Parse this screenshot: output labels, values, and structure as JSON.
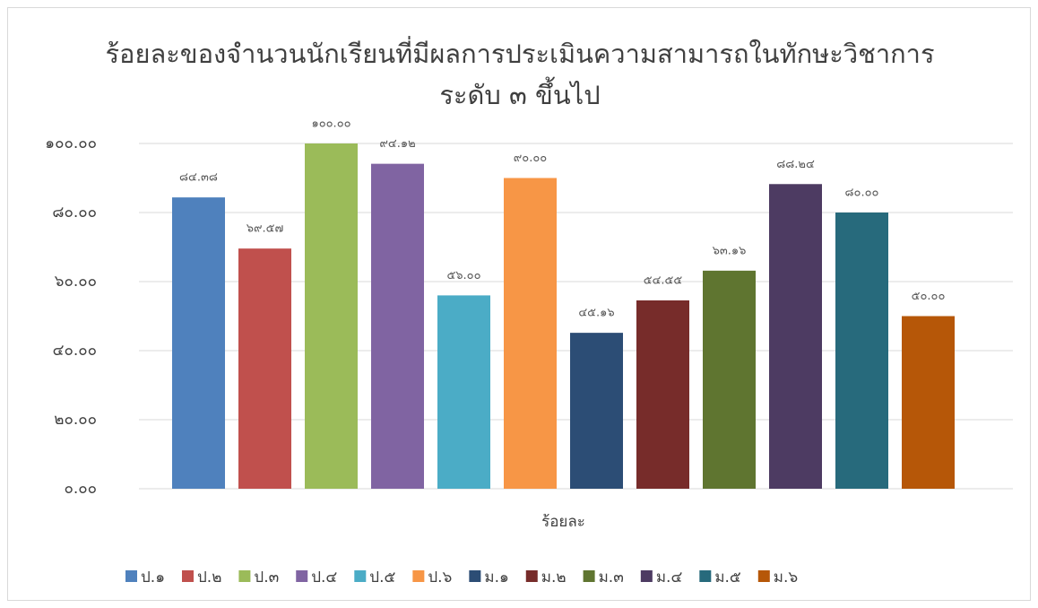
{
  "chart_data": {
    "type": "bar",
    "title": [
      "ร้อยละของจำนวนนักเรียนที่มีผลการประเมินความสามารถในทักษะวิชาการ",
      "ระดับ ๓ ขึ้นไป"
    ],
    "categories": [
      "ร้อยละ"
    ],
    "series": [
      {
        "name": "ป.๑",
        "color": "#4f81bd",
        "values": [
          84.38
        ],
        "value_labels": [
          "๘๔.๓๘"
        ]
      },
      {
        "name": "ป.๒",
        "color": "#c0504d",
        "values": [
          69.57
        ],
        "value_labels": [
          "๖๙.๕๗"
        ]
      },
      {
        "name": "ป.๓",
        "color": "#9bbb59",
        "values": [
          100
        ],
        "value_labels": [
          "๑๐๐.๐๐"
        ]
      },
      {
        "name": "ป.๔",
        "color": "#8064a2",
        "values": [
          94.12
        ],
        "value_labels": [
          "๙๔.๑๒"
        ]
      },
      {
        "name": "ป.๕",
        "color": "#4bacc6",
        "values": [
          56
        ],
        "value_labels": [
          "๕๖.๐๐"
        ]
      },
      {
        "name": "ป.๖",
        "color": "#f79646",
        "values": [
          90
        ],
        "value_labels": [
          "๙๐.๐๐"
        ]
      },
      {
        "name": "ม.๑",
        "color": "#2c4d75",
        "values": [
          45.16
        ],
        "value_labels": [
          "๔๕.๑๖"
        ]
      },
      {
        "name": "ม.๒",
        "color": "#772c2a",
        "values": [
          54.55
        ],
        "value_labels": [
          "๕๔.๕๕"
        ]
      },
      {
        "name": "ม.๓",
        "color": "#5f7530",
        "values": [
          63.16
        ],
        "value_labels": [
          "๖๓.๑๖"
        ]
      },
      {
        "name": "ม.๔",
        "color": "#4d3b62",
        "values": [
          88.24
        ],
        "value_labels": [
          "๘๘.๒๔"
        ]
      },
      {
        "name": "ม.๕",
        "color": "#276a7c",
        "values": [
          80
        ],
        "value_labels": [
          "๘๐.๐๐"
        ]
      },
      {
        "name": "ม.๖",
        "color": "#b65708",
        "values": [
          50
        ],
        "value_labels": [
          "๕๐.๐๐"
        ]
      }
    ],
    "ylim": [
      0,
      100
    ],
    "yticks": [
      {
        "value": 0,
        "label": "๐.๐๐"
      },
      {
        "value": 20,
        "label": "๒๐.๐๐"
      },
      {
        "value": 40,
        "label": "๔๐.๐๐"
      },
      {
        "value": 60,
        "label": "๖๐.๐๐"
      },
      {
        "value": 80,
        "label": "๘๐.๐๐"
      },
      {
        "value": 100,
        "label": "๑๐๐.๐๐"
      }
    ],
    "grid": true,
    "legend": "bottom"
  }
}
